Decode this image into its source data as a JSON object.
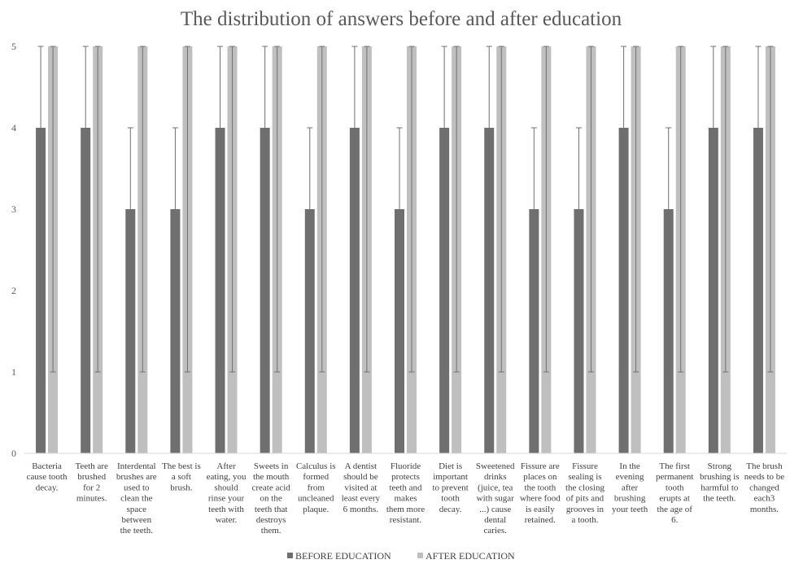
{
  "chart_data": {
    "type": "bar",
    "title": "The distribution of answers before and after education",
    "xlabel": "",
    "ylabel": "",
    "ylim": [
      0,
      5
    ],
    "yticks": [
      0,
      1,
      2,
      3,
      4,
      5
    ],
    "grid": false,
    "legend_position": "bottom",
    "categories": [
      "Bacteria cause tooth decay.",
      "Teeth are brushed for 2 minutes.",
      "Interdental brushes are used to clean the space between the teeth.",
      "The best is a soft brush.",
      "After eating, you should rinse your teeth with water.",
      "Sweets in the mouth create acid on the teeth that destroys them.",
      "Calculus is formed from uncleaned plaque.",
      "A dentist should be visited at least every 6 months.",
      "Fluoride protects teeth and makes them more resistant.",
      "Diet is important to prevent tooth decay.",
      "Sweetened drinks (juice, tea with sugar ...) cause dental caries.",
      "Fissure are places on the tooth where food is easily retained.",
      "Fissure sealing is the closing of pits and grooves in a tooth.",
      "In the evening after brushing your teeth",
      "The first permanent tooth erupts at the age of 6.",
      "Strong brushing is harmful to the teeth.",
      "The brush needs to be changed each3 months."
    ],
    "series": [
      {
        "name": "BEFORE EDUCATION",
        "color": "#6f6f6f",
        "values": [
          4,
          4,
          3,
          3,
          4,
          4,
          3,
          4,
          3,
          4,
          4,
          3,
          3,
          4,
          3,
          4,
          4
        ],
        "error_low": [
          1,
          1,
          1,
          1,
          1,
          1,
          1,
          1,
          1,
          1,
          1,
          1,
          1,
          1,
          1,
          1,
          1
        ],
        "error_high": [
          5,
          5,
          4,
          4,
          5,
          5,
          4,
          5,
          4,
          5,
          5,
          4,
          4,
          5,
          4,
          5,
          5
        ]
      },
      {
        "name": "AFTER EDUCATION",
        "color": "#bfbfbf",
        "values": [
          5,
          5,
          5,
          5,
          5,
          5,
          5,
          5,
          5,
          5,
          5,
          5,
          5,
          5,
          5,
          5,
          5
        ],
        "error_low": [
          1,
          1,
          1,
          1,
          1,
          1,
          1,
          1,
          1,
          1,
          1,
          1,
          1,
          1,
          1,
          1,
          1
        ],
        "error_high": [
          5,
          5,
          5,
          5,
          5,
          5,
          5,
          5,
          5,
          5,
          5,
          5,
          5,
          5,
          5,
          5,
          5
        ]
      }
    ],
    "category_label_lines": [
      [
        "Bacteria",
        "cause tooth",
        "decay."
      ],
      [
        "Teeth are",
        "brushed",
        "for 2",
        "minutes."
      ],
      [
        "Interdental",
        "brushes are",
        "used to",
        "clean the",
        "space",
        "between",
        "the teeth."
      ],
      [
        "The best is",
        "a soft",
        "brush."
      ],
      [
        "After",
        "eating, you",
        "should",
        "rinse your",
        "teeth with",
        "water."
      ],
      [
        "Sweets in",
        "the mouth",
        "create acid",
        "on the",
        "teeth that",
        "destroys",
        "them."
      ],
      [
        "Calculus is",
        "formed",
        "from",
        "uncleaned",
        "plaque."
      ],
      [
        "A dentist",
        "should be",
        "visited at",
        "least every",
        "6 months."
      ],
      [
        "Fluoride",
        "protects",
        "teeth and",
        "makes",
        "them more",
        "resistant."
      ],
      [
        "Diet is",
        "important",
        "to prevent",
        "tooth",
        "decay."
      ],
      [
        "Sweetened",
        "drinks",
        "(juice, tea",
        "with sugar",
        "...) cause",
        "dental",
        "caries."
      ],
      [
        "Fissure are",
        "places on",
        "the tooth",
        "where food",
        "is easily",
        "retained."
      ],
      [
        "Fissure",
        "sealing is",
        "the closing",
        "of  pits and",
        "grooves in",
        "a tooth."
      ],
      [
        "In the",
        "evening",
        "after",
        "brushing",
        "your teeth"
      ],
      [
        "The first",
        "permanent",
        "tooth",
        "erupts at",
        "the age of",
        "6."
      ],
      [
        "Strong",
        "brushing is",
        "harmful to",
        "the teeth."
      ],
      [
        "The brush",
        "needs to be",
        "changed",
        "each3",
        "months."
      ]
    ]
  }
}
